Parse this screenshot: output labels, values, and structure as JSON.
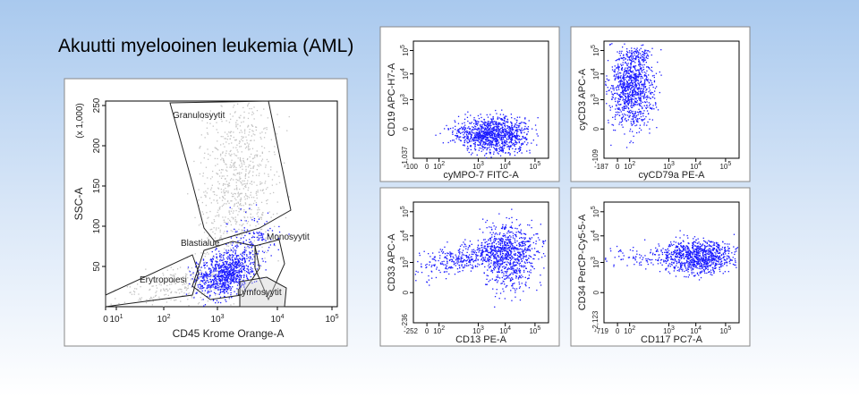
{
  "title": "Akuutti myelooinen leukemia (AML)",
  "main_plot": {
    "y_label": "SSC-A",
    "y_unit": "(x 1,000)",
    "y_ticks": [
      "250",
      "200",
      "150",
      "100",
      "50"
    ],
    "x_label": "CD45 Krome Orange-A",
    "x_ticks": [
      "0",
      {
        "base": "10",
        "exp": "1"
      },
      {
        "base": "10",
        "exp": "2"
      },
      {
        "base": "10",
        "exp": "3"
      },
      {
        "base": "10",
        "exp": "4"
      },
      {
        "base": "10",
        "exp": "5"
      }
    ],
    "gates": [
      "Granulosyytit",
      "Blastialue",
      "Monosyytit",
      "Erytropoiesi",
      "Lymfosyytit"
    ]
  },
  "panels": [
    {
      "y_label": "CD19 APC-H7-A",
      "x_label": "cyMPO-7 FITC-A",
      "y_min": "-1,037",
      "x_min": "-100",
      "y_ticks": [
        "0",
        {
          "base": "10",
          "exp": "3"
        },
        {
          "base": "10",
          "exp": "4"
        },
        {
          "base": "10",
          "exp": "5"
        }
      ],
      "x_ticks": [
        "0",
        {
          "base": "10",
          "exp": "2"
        },
        {
          "base": "10",
          "exp": "3"
        },
        {
          "base": "10",
          "exp": "4"
        },
        {
          "base": "10",
          "exp": "5"
        }
      ]
    },
    {
      "y_label": "cyCD3 APC-A",
      "x_label": "cyCD79a PE-A",
      "y_min": "-109",
      "x_min": "-187",
      "y_ticks": [
        "0",
        {
          "base": "10",
          "exp": "3"
        },
        {
          "base": "10",
          "exp": "4"
        },
        {
          "base": "10",
          "exp": "5"
        }
      ],
      "x_ticks": [
        "0",
        {
          "base": "10",
          "exp": "2"
        },
        {
          "base": "10",
          "exp": "3"
        },
        {
          "base": "10",
          "exp": "4"
        },
        {
          "base": "10",
          "exp": "5"
        }
      ]
    },
    {
      "y_label": "CD33 APC-A",
      "x_label": "CD13 PE-A",
      "y_min": "-236",
      "x_min": "-252",
      "y_ticks": [
        "0",
        {
          "base": "10",
          "exp": "3"
        },
        {
          "base": "10",
          "exp": "4"
        },
        {
          "base": "10",
          "exp": "5"
        }
      ],
      "x_ticks": [
        "0",
        {
          "base": "10",
          "exp": "2"
        },
        {
          "base": "10",
          "exp": "3"
        },
        {
          "base": "10",
          "exp": "4"
        },
        {
          "base": "10",
          "exp": "5"
        }
      ]
    },
    {
      "y_label": "CD34 PerCP-Cy5-5-A",
      "x_label": "CD117 PC7-A",
      "y_min": "-2,123",
      "x_min": "-719",
      "y_ticks": [
        "0",
        {
          "base": "10",
          "exp": "3"
        },
        {
          "base": "10",
          "exp": "4"
        },
        {
          "base": "10",
          "exp": "5"
        }
      ],
      "x_ticks": [
        "0",
        {
          "base": "10",
          "exp": "2"
        },
        {
          "base": "10",
          "exp": "3"
        },
        {
          "base": "10",
          "exp": "4"
        },
        {
          "base": "10",
          "exp": "5"
        }
      ]
    }
  ]
}
